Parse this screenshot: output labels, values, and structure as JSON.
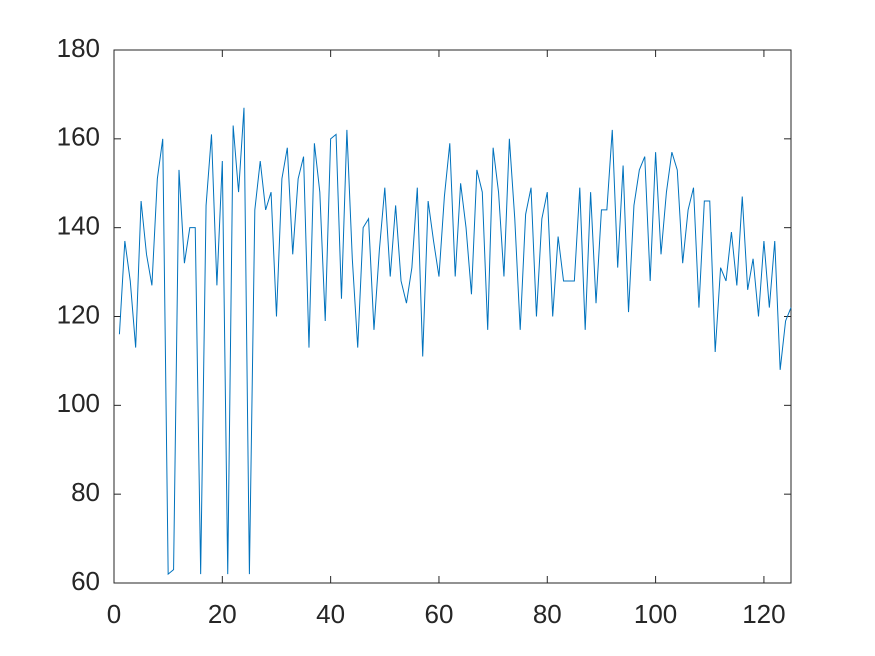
{
  "chart_data": {
    "type": "line",
    "x": [
      1,
      2,
      3,
      4,
      5,
      6,
      7,
      8,
      9,
      10,
      11,
      12,
      13,
      14,
      15,
      16,
      17,
      18,
      19,
      20,
      21,
      22,
      23,
      24,
      25,
      26,
      27,
      28,
      29,
      30,
      31,
      32,
      33,
      34,
      35,
      36,
      37,
      38,
      39,
      40,
      41,
      42,
      43,
      44,
      45,
      46,
      47,
      48,
      49,
      50,
      51,
      52,
      53,
      54,
      55,
      56,
      57,
      58,
      59,
      60,
      61,
      62,
      63,
      64,
      65,
      66,
      67,
      68,
      69,
      70,
      71,
      72,
      73,
      74,
      75,
      76,
      77,
      78,
      79,
      80,
      81,
      82,
      83,
      84,
      85,
      86,
      87,
      88,
      89,
      90,
      91,
      92,
      93,
      94,
      95,
      96,
      97,
      98,
      99,
      100,
      101,
      102,
      103,
      104,
      105,
      106,
      107,
      108,
      109,
      110,
      111,
      112,
      113,
      114,
      115,
      116,
      117,
      118,
      119,
      120,
      121,
      122,
      123,
      124,
      125
    ],
    "series": [
      {
        "color": "#0072bd",
        "values": [
          116,
          137,
          128,
          113,
          146,
          134,
          127,
          151,
          160,
          62,
          63,
          153,
          132,
          140,
          140,
          62,
          145,
          161,
          127,
          155,
          62,
          163,
          148,
          167,
          62,
          144,
          155,
          144,
          148,
          120,
          151,
          158,
          134,
          151,
          156,
          113,
          159,
          148,
          119,
          160,
          161,
          124,
          162,
          133,
          113,
          140,
          142,
          117,
          135,
          149,
          129,
          145,
          128,
          123,
          131,
          149,
          111,
          146,
          137,
          129,
          147,
          159,
          129,
          150,
          140,
          125,
          153,
          148,
          117,
          158,
          148,
          129,
          160,
          142,
          117,
          143,
          149,
          120,
          142,
          148,
          120,
          138,
          128,
          128,
          128,
          149,
          117,
          148,
          123,
          144,
          144,
          162,
          131,
          154,
          121,
          145,
          153,
          156,
          128,
          157,
          134,
          148,
          157,
          153,
          132,
          144,
          149,
          122,
          146,
          146,
          112,
          131,
          128,
          139,
          127,
          147,
          126,
          133,
          120,
          137,
          122,
          137,
          108,
          119,
          122
        ]
      }
    ],
    "xlim": [
      0,
      125
    ],
    "ylim": [
      60,
      180
    ],
    "xticks": [
      0,
      20,
      40,
      60,
      80,
      100,
      120
    ],
    "yticks": [
      60,
      80,
      100,
      120,
      140,
      160,
      180
    ]
  }
}
